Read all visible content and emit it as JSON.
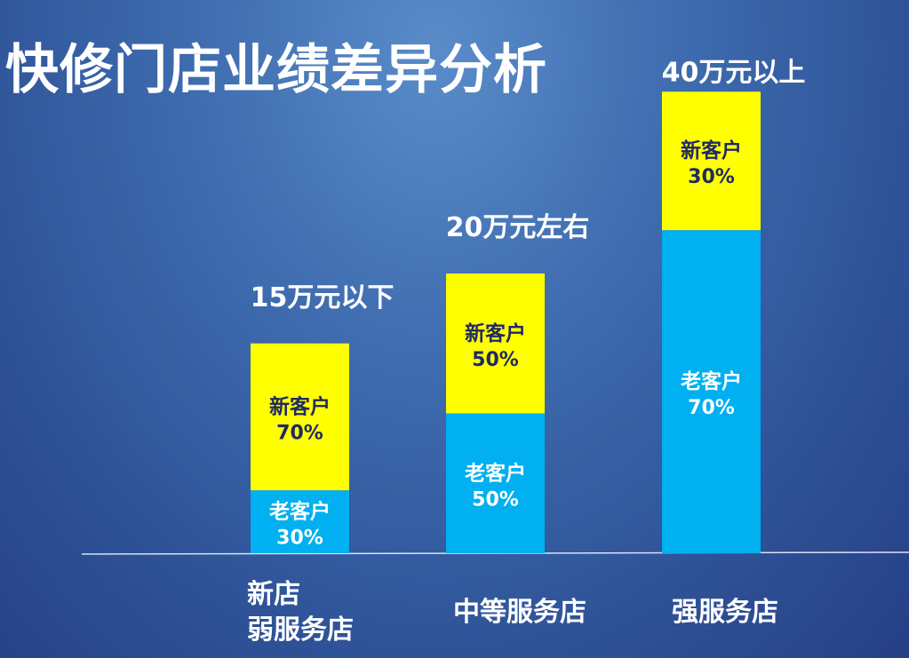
{
  "title": "快修门店业绩差异分析",
  "chart_data": {
    "type": "bar",
    "stacked": true,
    "percent_stacked": true,
    "title": "快修门店业绩差异分析",
    "categories": [
      [
        "新店",
        "弱服务店"
      ],
      [
        "中等服务店"
      ],
      [
        "强服务店"
      ]
    ],
    "totals": [
      "15万元以下",
      "20万元左右",
      "40万元以上"
    ],
    "relative_heights": [
      15,
      20,
      33
    ],
    "series": [
      {
        "name": "老客户",
        "values": [
          30,
          50,
          70
        ],
        "labels": [
          "30%",
          "50%",
          "70%"
        ],
        "color": "#00b0f0"
      },
      {
        "name": "新客户",
        "values": [
          70,
          50,
          30
        ],
        "labels": [
          "70%",
          "50%",
          "30%"
        ],
        "color": "#ffff00"
      }
    ],
    "label_color": "#1f2a60",
    "grid": false,
    "legend": "none"
  }
}
